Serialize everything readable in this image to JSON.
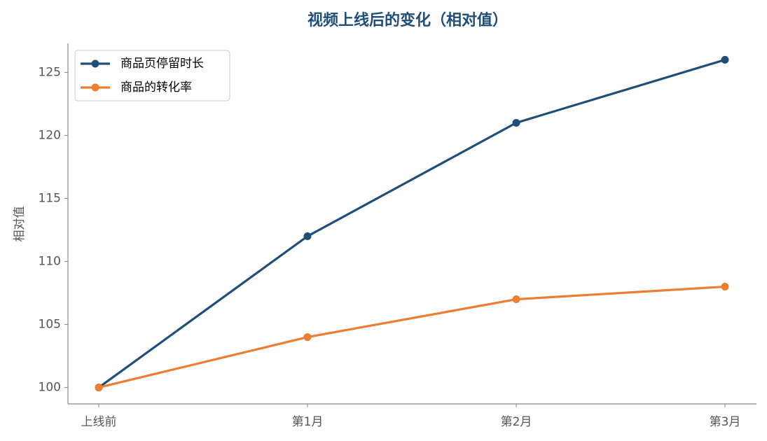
{
  "chart_data": {
    "type": "line",
    "title": "视频上线后的变化（相对值）",
    "y_label": "相对值",
    "categories": [
      "上线前",
      "第1月",
      "第2月",
      "第3月"
    ],
    "series": [
      {
        "name": "商品页停留时长",
        "color": "#1f4e79",
        "values": [
          100,
          112,
          121,
          126
        ]
      },
      {
        "name": "商品的转化率",
        "color": "#ed7d31",
        "values": [
          100,
          104,
          107,
          108
        ]
      }
    ],
    "ylim": [
      98.7,
      127.3
    ],
    "yticks": [
      100,
      105,
      110,
      115,
      120,
      125
    ],
    "grid": false,
    "legend": "upper left"
  }
}
